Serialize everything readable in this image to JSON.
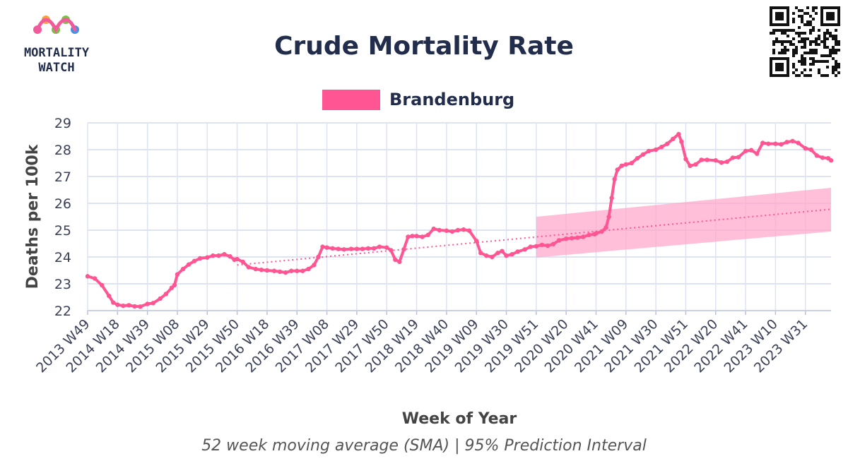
{
  "logo": {
    "line1": "MORTALITY",
    "line2": "WATCH",
    "colors": [
      "#f15a9b",
      "#f7a23b",
      "#7ac143",
      "#4a90e2"
    ]
  },
  "qr_code": {
    "icon": "qr-code-icon"
  },
  "chart_data": {
    "type": "line",
    "title": "Crude Mortality Rate",
    "xlabel": "Week of Year",
    "ylabel": "Deaths per 100k",
    "caption": "52 week moving average (SMA) | 95% Prediction Interval",
    "ylim": [
      22,
      29
    ],
    "yticks": [
      22,
      23,
      24,
      25,
      26,
      27,
      28,
      29
    ],
    "grid": true,
    "legend_position": "top-center",
    "xlim": [
      "2013 W49",
      "2023 W48"
    ],
    "xticks": [
      {
        "label": "2013 W49",
        "date": "2013-12-02"
      },
      {
        "label": "2014 W18",
        "date": "2014-04-28"
      },
      {
        "label": "2014 W39",
        "date": "2014-09-22"
      },
      {
        "label": "2015 W08",
        "date": "2015-02-16"
      },
      {
        "label": "2015 W29",
        "date": "2015-07-13"
      },
      {
        "label": "2015 W50",
        "date": "2015-12-07"
      },
      {
        "label": "2016 W18",
        "date": "2016-05-02"
      },
      {
        "label": "2016 W39",
        "date": "2016-09-26"
      },
      {
        "label": "2017 W08",
        "date": "2017-02-20"
      },
      {
        "label": "2017 W29",
        "date": "2017-07-17"
      },
      {
        "label": "2017 W50",
        "date": "2017-12-11"
      },
      {
        "label": "2018 W19",
        "date": "2018-05-07"
      },
      {
        "label": "2018 W40",
        "date": "2018-10-01"
      },
      {
        "label": "2019 W09",
        "date": "2019-02-25"
      },
      {
        "label": "2019 W30",
        "date": "2019-07-22"
      },
      {
        "label": "2019 W51",
        "date": "2019-12-16"
      },
      {
        "label": "2020 W20",
        "date": "2020-05-11"
      },
      {
        "label": "2020 W41",
        "date": "2020-10-05"
      },
      {
        "label": "2021 W09",
        "date": "2021-03-01"
      },
      {
        "label": "2021 W30",
        "date": "2021-07-26"
      },
      {
        "label": "2021 W51",
        "date": "2021-12-20"
      },
      {
        "label": "2022 W20",
        "date": "2022-05-16"
      },
      {
        "label": "2022 W41",
        "date": "2022-10-10"
      },
      {
        "label": "2023 W10",
        "date": "2023-03-06"
      },
      {
        "label": "2023 W31",
        "date": "2023-07-31"
      }
    ],
    "series": [
      {
        "name": "Brandenburg",
        "color": "#ff5593",
        "points": [
          [
            "2013-12-02",
            23.28
          ],
          [
            "2014-01-06",
            23.2
          ],
          [
            "2014-02-10",
            22.95
          ],
          [
            "2014-03-17",
            22.55
          ],
          [
            "2014-04-07",
            22.3
          ],
          [
            "2014-04-28",
            22.22
          ],
          [
            "2014-05-26",
            22.18
          ],
          [
            "2014-06-23",
            22.2
          ],
          [
            "2014-07-21",
            22.16
          ],
          [
            "2014-08-18",
            22.15
          ],
          [
            "2014-09-22",
            22.25
          ],
          [
            "2014-10-20",
            22.28
          ],
          [
            "2014-11-24",
            22.45
          ],
          [
            "2014-12-22",
            22.62
          ],
          [
            "2015-01-19",
            22.85
          ],
          [
            "2015-02-02",
            22.95
          ],
          [
            "2015-02-16",
            23.35
          ],
          [
            "2015-03-16",
            23.55
          ],
          [
            "2015-04-13",
            23.72
          ],
          [
            "2015-05-11",
            23.85
          ],
          [
            "2015-06-08",
            23.95
          ],
          [
            "2015-07-13",
            23.98
          ],
          [
            "2015-08-10",
            24.05
          ],
          [
            "2015-09-07",
            24.05
          ],
          [
            "2015-10-05",
            24.1
          ],
          [
            "2015-11-02",
            24.02
          ],
          [
            "2015-11-23",
            23.9
          ],
          [
            "2015-12-07",
            23.92
          ],
          [
            "2016-01-04",
            23.82
          ],
          [
            "2016-02-01",
            23.62
          ],
          [
            "2016-03-07",
            23.55
          ],
          [
            "2016-04-04",
            23.52
          ],
          [
            "2016-05-02",
            23.5
          ],
          [
            "2016-06-06",
            23.48
          ],
          [
            "2016-07-04",
            23.45
          ],
          [
            "2016-08-01",
            23.42
          ],
          [
            "2016-08-29",
            23.48
          ],
          [
            "2016-09-26",
            23.48
          ],
          [
            "2016-10-24",
            23.48
          ],
          [
            "2016-11-21",
            23.55
          ],
          [
            "2016-12-19",
            23.7
          ],
          [
            "2017-01-09",
            24.0
          ],
          [
            "2017-01-30",
            24.38
          ],
          [
            "2017-02-20",
            24.35
          ],
          [
            "2017-03-20",
            24.32
          ],
          [
            "2017-04-17",
            24.3
          ],
          [
            "2017-05-15",
            24.28
          ],
          [
            "2017-06-19",
            24.3
          ],
          [
            "2017-07-17",
            24.3
          ],
          [
            "2017-08-14",
            24.3
          ],
          [
            "2017-09-11",
            24.32
          ],
          [
            "2017-10-09",
            24.32
          ],
          [
            "2017-11-06",
            24.38
          ],
          [
            "2017-12-11",
            24.35
          ],
          [
            "2018-01-01",
            24.25
          ],
          [
            "2018-01-22",
            23.9
          ],
          [
            "2018-02-12",
            23.82
          ],
          [
            "2018-03-05",
            24.28
          ],
          [
            "2018-03-26",
            24.75
          ],
          [
            "2018-04-16",
            24.78
          ],
          [
            "2018-05-07",
            24.78
          ],
          [
            "2018-06-04",
            24.75
          ],
          [
            "2018-07-02",
            24.82
          ],
          [
            "2018-07-30",
            25.05
          ],
          [
            "2018-08-27",
            25.0
          ],
          [
            "2018-10-01",
            24.98
          ],
          [
            "2018-10-29",
            24.95
          ],
          [
            "2018-11-26",
            25.0
          ],
          [
            "2018-12-24",
            25.02
          ],
          [
            "2019-01-21",
            24.98
          ],
          [
            "2019-02-25",
            24.6
          ],
          [
            "2019-03-18",
            24.15
          ],
          [
            "2019-04-15",
            24.05
          ],
          [
            "2019-05-13",
            24.0
          ],
          [
            "2019-06-10",
            24.15
          ],
          [
            "2019-07-01",
            24.22
          ],
          [
            "2019-07-22",
            24.05
          ],
          [
            "2019-08-19",
            24.1
          ],
          [
            "2019-09-16",
            24.2
          ],
          [
            "2019-10-21",
            24.28
          ],
          [
            "2019-11-18",
            24.38
          ],
          [
            "2019-12-16",
            24.4
          ],
          [
            "2020-01-13",
            24.45
          ],
          [
            "2020-02-10",
            24.42
          ],
          [
            "2020-03-09",
            24.48
          ],
          [
            "2020-04-06",
            24.62
          ],
          [
            "2020-05-11",
            24.68
          ],
          [
            "2020-06-08",
            24.7
          ],
          [
            "2020-07-06",
            24.72
          ],
          [
            "2020-08-03",
            24.75
          ],
          [
            "2020-08-31",
            24.82
          ],
          [
            "2020-09-28",
            24.85
          ],
          [
            "2020-10-05",
            24.88
          ],
          [
            "2020-11-02",
            24.95
          ],
          [
            "2020-11-23",
            25.1
          ],
          [
            "2020-12-07",
            25.5
          ],
          [
            "2020-12-21",
            26.2
          ],
          [
            "2021-01-04",
            26.9
          ],
          [
            "2021-01-18",
            27.25
          ],
          [
            "2021-02-08",
            27.4
          ],
          [
            "2021-03-01",
            27.45
          ],
          [
            "2021-03-29",
            27.5
          ],
          [
            "2021-04-26",
            27.68
          ],
          [
            "2021-05-24",
            27.82
          ],
          [
            "2021-06-21",
            27.95
          ],
          [
            "2021-07-26",
            28.0
          ],
          [
            "2021-08-23",
            28.1
          ],
          [
            "2021-09-20",
            28.22
          ],
          [
            "2021-10-18",
            28.4
          ],
          [
            "2021-11-15",
            28.58
          ],
          [
            "2021-11-29",
            28.3
          ],
          [
            "2021-12-20",
            27.65
          ],
          [
            "2022-01-10",
            27.4
          ],
          [
            "2022-02-07",
            27.45
          ],
          [
            "2022-03-07",
            27.62
          ],
          [
            "2022-04-04",
            27.62
          ],
          [
            "2022-05-16",
            27.6
          ],
          [
            "2022-06-13",
            27.52
          ],
          [
            "2022-07-11",
            27.55
          ],
          [
            "2022-08-08",
            27.7
          ],
          [
            "2022-09-05",
            27.72
          ],
          [
            "2022-10-10",
            27.95
          ],
          [
            "2022-11-07",
            27.98
          ],
          [
            "2022-12-05",
            27.85
          ],
          [
            "2023-01-02",
            28.25
          ],
          [
            "2023-01-30",
            28.22
          ],
          [
            "2023-03-06",
            28.22
          ],
          [
            "2023-04-03",
            28.2
          ],
          [
            "2023-05-01",
            28.28
          ],
          [
            "2023-05-29",
            28.32
          ],
          [
            "2023-06-26",
            28.25
          ],
          [
            "2023-07-31",
            28.05
          ],
          [
            "2023-08-28",
            28.0
          ],
          [
            "2023-09-25",
            27.78
          ],
          [
            "2023-10-23",
            27.7
          ],
          [
            "2023-11-20",
            27.68
          ],
          [
            "2023-12-04",
            27.6
          ]
        ]
      }
    ],
    "trend": {
      "color": "#ff5593",
      "style": "dotted",
      "points": [
        [
          "2015-12-07",
          23.7
        ],
        [
          "2023-12-04",
          25.78
        ]
      ]
    },
    "prediction_interval": {
      "color": "#ffa6c9",
      "from": "2019-12-16",
      "to": "2023-12-04",
      "lower": [
        23.98,
        24.95
      ],
      "upper": [
        25.5,
        26.58
      ]
    }
  }
}
